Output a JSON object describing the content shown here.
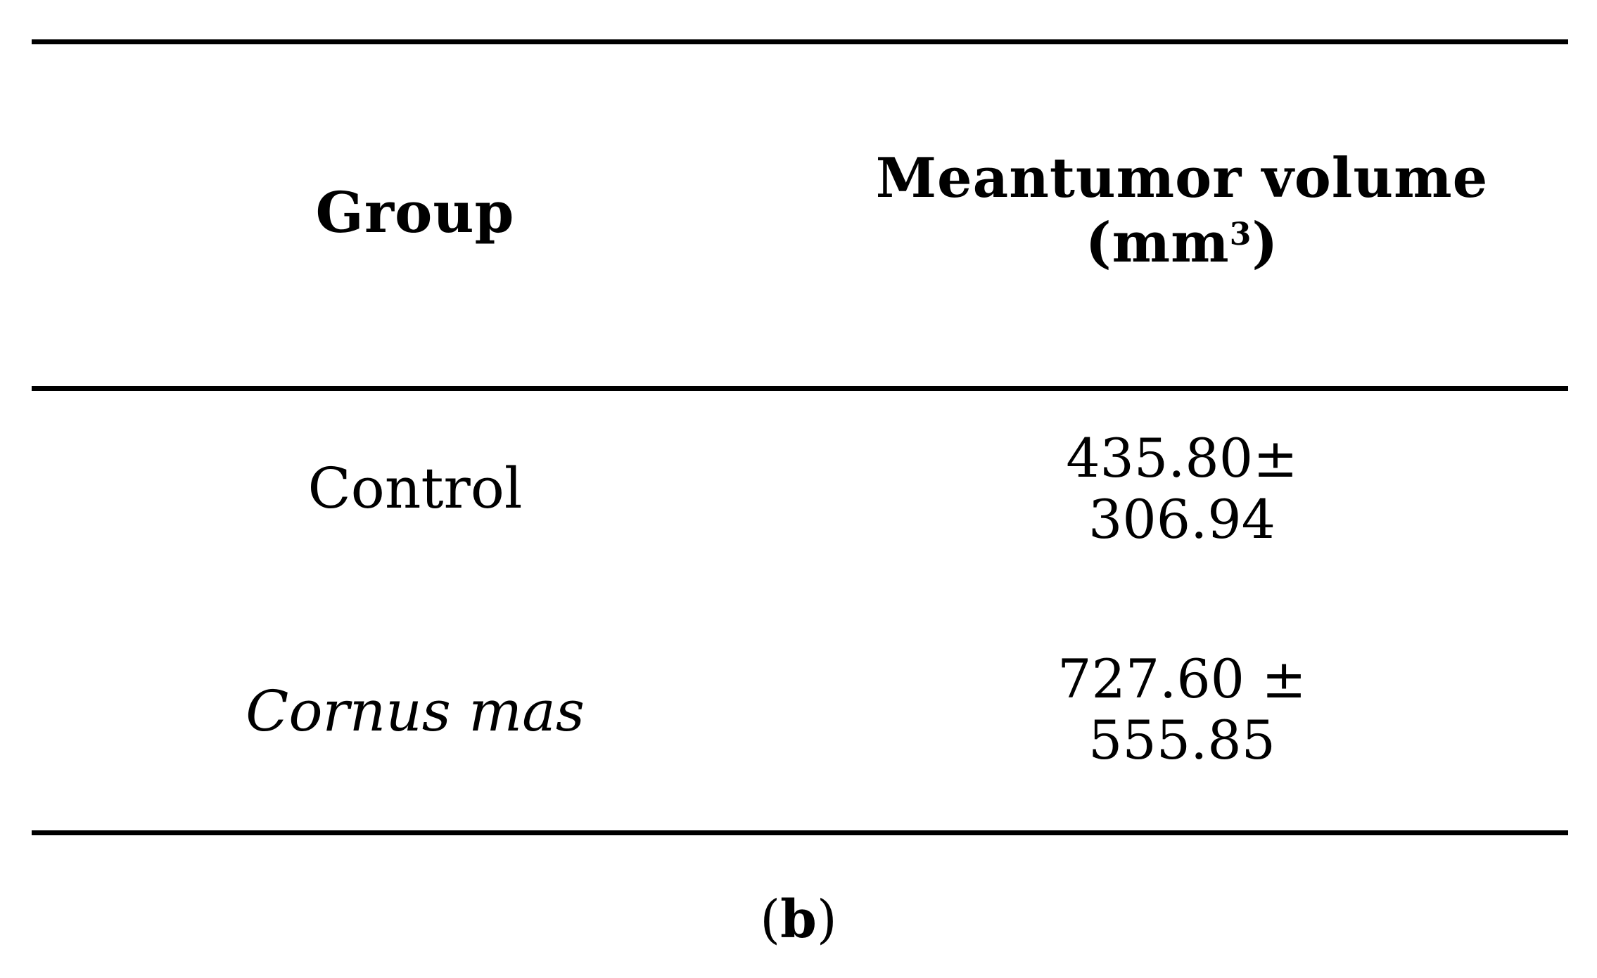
{
  "table": {
    "headers": {
      "group": "Group",
      "volume_line1": "Meantumor volume",
      "volume_unit_open": "(mm",
      "volume_unit_sup": "3",
      "volume_unit_close": ")"
    },
    "rows": [
      {
        "group": "Control",
        "value_line1": "435.80±",
        "value_line2": "306.94"
      },
      {
        "group": "Cornus mas",
        "value_line1": "727.60 ±",
        "value_line2": "555.85"
      }
    ]
  },
  "caption": {
    "open": "(",
    "letter": "b",
    "close": ")"
  }
}
